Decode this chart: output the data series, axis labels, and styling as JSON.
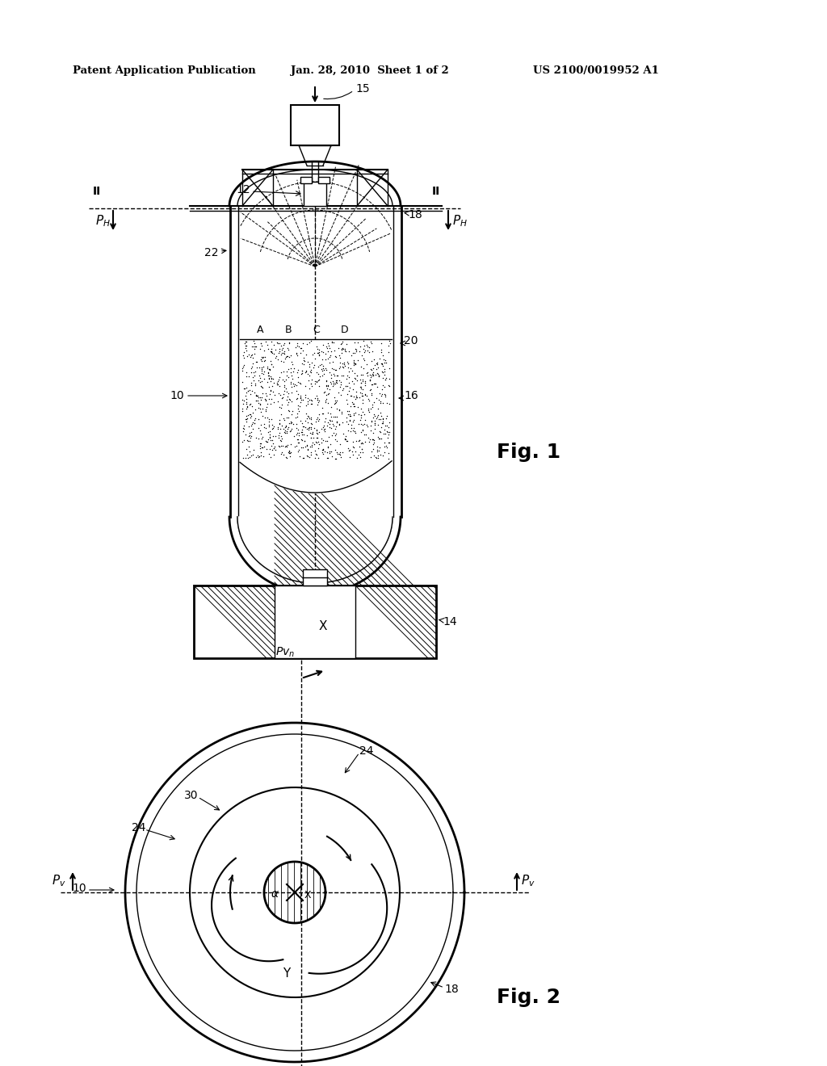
{
  "bg_color": "#ffffff",
  "line_color": "#000000",
  "header_left": "Patent Application Publication",
  "header_mid": "Jan. 28, 2010  Sheet 1 of 2",
  "header_right": "US 2100/0019952 A1",
  "fig1_label": "Fig. 1",
  "fig2_label": "Fig. 2"
}
